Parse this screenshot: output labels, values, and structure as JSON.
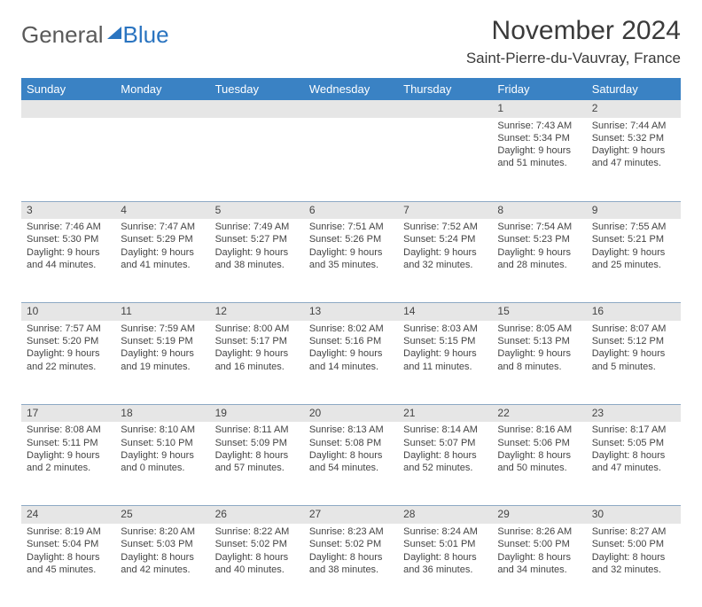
{
  "brand": {
    "part1": "General",
    "part2": "Blue"
  },
  "title": "November 2024",
  "location": "Saint-Pierre-du-Vauvray, France",
  "colors": {
    "header_bg": "#3a82c4",
    "header_fg": "#ffffff",
    "daynum_bg": "#e6e6e6",
    "rule": "#8da9c4",
    "brand_gray": "#5a5a5a",
    "brand_blue": "#2a74c0"
  },
  "typography": {
    "title_fontsize": 30,
    "location_fontsize": 17,
    "header_fontsize": 13,
    "daynum_fontsize": 12,
    "cell_fontsize": 11
  },
  "day_headers": [
    "Sunday",
    "Monday",
    "Tuesday",
    "Wednesday",
    "Thursday",
    "Friday",
    "Saturday"
  ],
  "weeks": [
    [
      null,
      null,
      null,
      null,
      null,
      {
        "n": "1",
        "sr": "Sunrise: 7:43 AM",
        "ss": "Sunset: 5:34 PM",
        "dl": "Daylight: 9 hours and 51 minutes."
      },
      {
        "n": "2",
        "sr": "Sunrise: 7:44 AM",
        "ss": "Sunset: 5:32 PM",
        "dl": "Daylight: 9 hours and 47 minutes."
      }
    ],
    [
      {
        "n": "3",
        "sr": "Sunrise: 7:46 AM",
        "ss": "Sunset: 5:30 PM",
        "dl": "Daylight: 9 hours and 44 minutes."
      },
      {
        "n": "4",
        "sr": "Sunrise: 7:47 AM",
        "ss": "Sunset: 5:29 PM",
        "dl": "Daylight: 9 hours and 41 minutes."
      },
      {
        "n": "5",
        "sr": "Sunrise: 7:49 AM",
        "ss": "Sunset: 5:27 PM",
        "dl": "Daylight: 9 hours and 38 minutes."
      },
      {
        "n": "6",
        "sr": "Sunrise: 7:51 AM",
        "ss": "Sunset: 5:26 PM",
        "dl": "Daylight: 9 hours and 35 minutes."
      },
      {
        "n": "7",
        "sr": "Sunrise: 7:52 AM",
        "ss": "Sunset: 5:24 PM",
        "dl": "Daylight: 9 hours and 32 minutes."
      },
      {
        "n": "8",
        "sr": "Sunrise: 7:54 AM",
        "ss": "Sunset: 5:23 PM",
        "dl": "Daylight: 9 hours and 28 minutes."
      },
      {
        "n": "9",
        "sr": "Sunrise: 7:55 AM",
        "ss": "Sunset: 5:21 PM",
        "dl": "Daylight: 9 hours and 25 minutes."
      }
    ],
    [
      {
        "n": "10",
        "sr": "Sunrise: 7:57 AM",
        "ss": "Sunset: 5:20 PM",
        "dl": "Daylight: 9 hours and 22 minutes."
      },
      {
        "n": "11",
        "sr": "Sunrise: 7:59 AM",
        "ss": "Sunset: 5:19 PM",
        "dl": "Daylight: 9 hours and 19 minutes."
      },
      {
        "n": "12",
        "sr": "Sunrise: 8:00 AM",
        "ss": "Sunset: 5:17 PM",
        "dl": "Daylight: 9 hours and 16 minutes."
      },
      {
        "n": "13",
        "sr": "Sunrise: 8:02 AM",
        "ss": "Sunset: 5:16 PM",
        "dl": "Daylight: 9 hours and 14 minutes."
      },
      {
        "n": "14",
        "sr": "Sunrise: 8:03 AM",
        "ss": "Sunset: 5:15 PM",
        "dl": "Daylight: 9 hours and 11 minutes."
      },
      {
        "n": "15",
        "sr": "Sunrise: 8:05 AM",
        "ss": "Sunset: 5:13 PM",
        "dl": "Daylight: 9 hours and 8 minutes."
      },
      {
        "n": "16",
        "sr": "Sunrise: 8:07 AM",
        "ss": "Sunset: 5:12 PM",
        "dl": "Daylight: 9 hours and 5 minutes."
      }
    ],
    [
      {
        "n": "17",
        "sr": "Sunrise: 8:08 AM",
        "ss": "Sunset: 5:11 PM",
        "dl": "Daylight: 9 hours and 2 minutes."
      },
      {
        "n": "18",
        "sr": "Sunrise: 8:10 AM",
        "ss": "Sunset: 5:10 PM",
        "dl": "Daylight: 9 hours and 0 minutes."
      },
      {
        "n": "19",
        "sr": "Sunrise: 8:11 AM",
        "ss": "Sunset: 5:09 PM",
        "dl": "Daylight: 8 hours and 57 minutes."
      },
      {
        "n": "20",
        "sr": "Sunrise: 8:13 AM",
        "ss": "Sunset: 5:08 PM",
        "dl": "Daylight: 8 hours and 54 minutes."
      },
      {
        "n": "21",
        "sr": "Sunrise: 8:14 AM",
        "ss": "Sunset: 5:07 PM",
        "dl": "Daylight: 8 hours and 52 minutes."
      },
      {
        "n": "22",
        "sr": "Sunrise: 8:16 AM",
        "ss": "Sunset: 5:06 PM",
        "dl": "Daylight: 8 hours and 50 minutes."
      },
      {
        "n": "23",
        "sr": "Sunrise: 8:17 AM",
        "ss": "Sunset: 5:05 PM",
        "dl": "Daylight: 8 hours and 47 minutes."
      }
    ],
    [
      {
        "n": "24",
        "sr": "Sunrise: 8:19 AM",
        "ss": "Sunset: 5:04 PM",
        "dl": "Daylight: 8 hours and 45 minutes."
      },
      {
        "n": "25",
        "sr": "Sunrise: 8:20 AM",
        "ss": "Sunset: 5:03 PM",
        "dl": "Daylight: 8 hours and 42 minutes."
      },
      {
        "n": "26",
        "sr": "Sunrise: 8:22 AM",
        "ss": "Sunset: 5:02 PM",
        "dl": "Daylight: 8 hours and 40 minutes."
      },
      {
        "n": "27",
        "sr": "Sunrise: 8:23 AM",
        "ss": "Sunset: 5:02 PM",
        "dl": "Daylight: 8 hours and 38 minutes."
      },
      {
        "n": "28",
        "sr": "Sunrise: 8:24 AM",
        "ss": "Sunset: 5:01 PM",
        "dl": "Daylight: 8 hours and 36 minutes."
      },
      {
        "n": "29",
        "sr": "Sunrise: 8:26 AM",
        "ss": "Sunset: 5:00 PM",
        "dl": "Daylight: 8 hours and 34 minutes."
      },
      {
        "n": "30",
        "sr": "Sunrise: 8:27 AM",
        "ss": "Sunset: 5:00 PM",
        "dl": "Daylight: 8 hours and 32 minutes."
      }
    ]
  ]
}
